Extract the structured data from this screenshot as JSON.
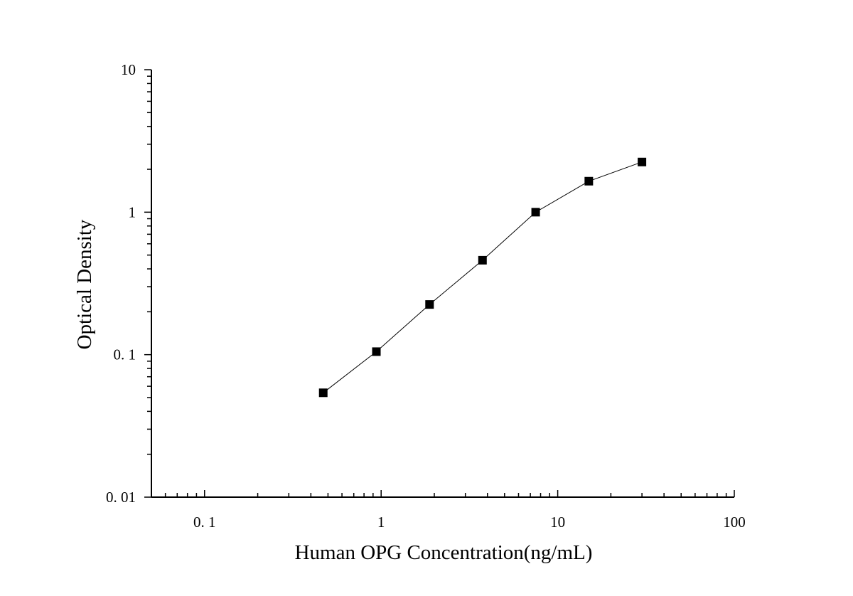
{
  "chart_data": {
    "type": "line",
    "title": "",
    "xlabel": "Human OPG Concentration(ng/mL)",
    "ylabel": "Optical Density",
    "xscale": "log",
    "yscale": "log",
    "xlim": [
      0.05,
      100
    ],
    "ylim": [
      0.01,
      10
    ],
    "x_ticks": [
      {
        "value": 0.1,
        "label": "0. 1"
      },
      {
        "value": 1,
        "label": "1"
      },
      {
        "value": 10,
        "label": "10"
      },
      {
        "value": 100,
        "label": "100"
      }
    ],
    "y_ticks": [
      {
        "value": 0.01,
        "label": "0. 01"
      },
      {
        "value": 0.1,
        "label": "0. 1"
      },
      {
        "value": 1,
        "label": "1"
      },
      {
        "value": 10,
        "label": "10"
      }
    ],
    "grid": false,
    "legend": "none",
    "marker": "square",
    "color": "#000000",
    "series": [
      {
        "x": [
          0.47,
          0.94,
          1.88,
          3.75,
          7.5,
          15,
          30
        ],
        "y": [
          0.054,
          0.105,
          0.225,
          0.46,
          1.0,
          1.65,
          2.25
        ]
      }
    ]
  }
}
